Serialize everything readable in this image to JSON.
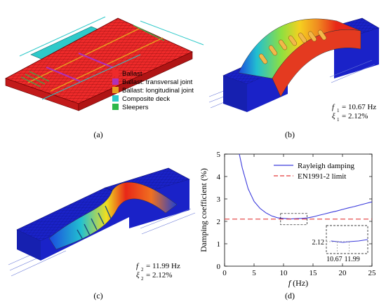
{
  "panels": {
    "a": {
      "label": "(a)",
      "legend": [
        {
          "label": "Ballast",
          "color": "#ee2a2a"
        },
        {
          "label": "Ballast: transversal joint",
          "color": "#b030b8"
        },
        {
          "label": "Ballast: longitudinal joint",
          "color": "#e8a020"
        },
        {
          "label": "Composite deck",
          "color": "#2ec9c9"
        },
        {
          "label": "Sleepers",
          "color": "#2db84a"
        }
      ]
    },
    "b": {
      "label": "(b)",
      "freq_sym": "f",
      "freq_sub": "1",
      "freq_value": "= 10.67 Hz",
      "damp_sym": "ξ",
      "damp_sub": "1",
      "damp_value": "= 2.12%"
    },
    "c": {
      "label": "(c)",
      "freq_sym": "f",
      "freq_sub": "2",
      "freq_value": "= 11.99 Hz",
      "damp_sym": "ξ",
      "damp_sub": "2",
      "damp_value": "= 2.12%"
    },
    "d": {
      "label": "(d)"
    }
  },
  "colors": {
    "fe_blue": "#1a22c8",
    "fe_red": "#e02020",
    "rayleigh": "#3b3bdc",
    "limit": "#e33a3a"
  },
  "chart_data": {
    "type": "line",
    "xlabel": "f (Hz)",
    "ylabel": "Damping coefficient (%)",
    "xlim": [
      0,
      25
    ],
    "ylim": [
      0,
      5
    ],
    "xticks": [
      0,
      5,
      10,
      15,
      20,
      25
    ],
    "yticks": [
      0,
      1,
      2,
      3,
      4,
      5
    ],
    "legend_position": "top-right",
    "series": [
      {
        "name": "Rayleigh damping",
        "color": "#3b3bdc",
        "style": "solid",
        "x": [
          2.5,
          3,
          4,
          5,
          6,
          7,
          8,
          9,
          10,
          10.67,
          11.3,
          11.99,
          13,
          14,
          15,
          16,
          17,
          18,
          19,
          20,
          21,
          22,
          23,
          24,
          25
        ],
        "y": [
          5.0,
          4.38,
          3.45,
          2.89,
          2.58,
          2.38,
          2.24,
          2.16,
          2.13,
          2.12,
          2.11,
          2.12,
          2.13,
          2.15,
          2.2,
          2.27,
          2.33,
          2.4,
          2.46,
          2.53,
          2.6,
          2.66,
          2.73,
          2.8,
          2.87
        ]
      },
      {
        "name": "EN1991-2 limit",
        "color": "#e33a3a",
        "style": "dashed",
        "x": [
          0,
          25
        ],
        "y": [
          2.1,
          2.1
        ]
      }
    ],
    "inset": {
      "zoom_x": [
        9.5,
        14
      ],
      "zoom_y": [
        1.85,
        2.35
      ],
      "label_y": "2.12",
      "label_x1": "10.67",
      "label_x2": "11.99"
    }
  }
}
